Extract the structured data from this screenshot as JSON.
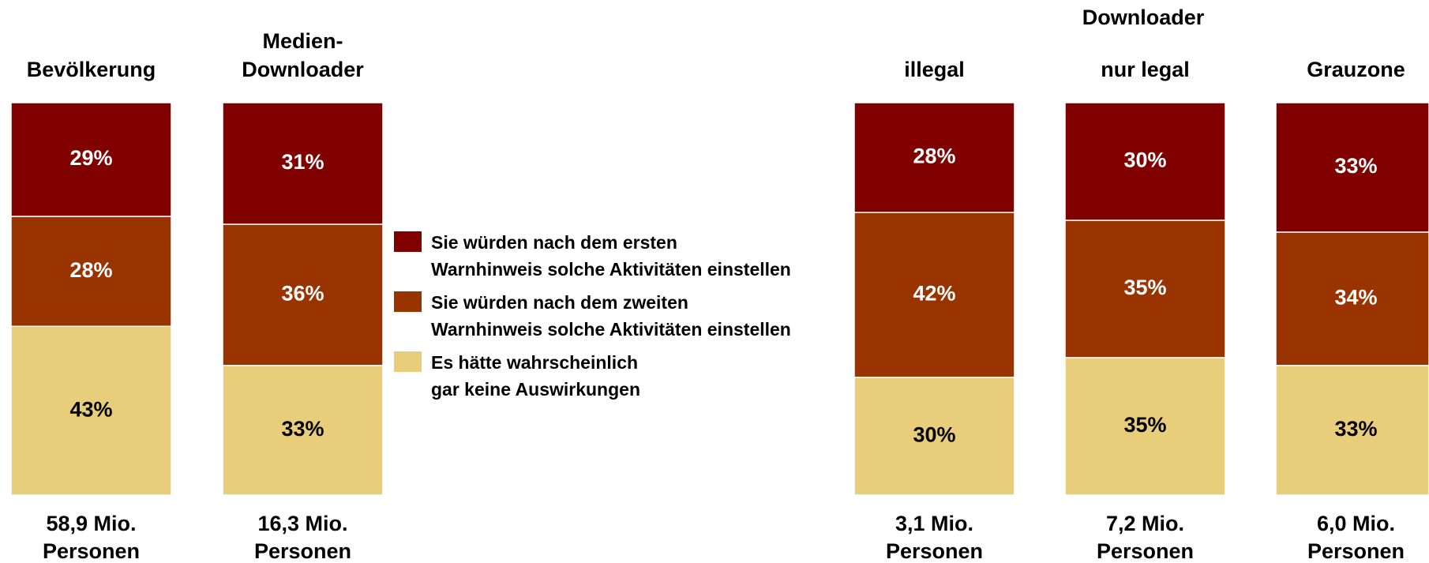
{
  "chart_data": {
    "type": "stacked_bar",
    "group_label": "Downloader",
    "categories": [
      [
        "Bevölkerung"
      ],
      [
        "Medien-",
        "Downloader"
      ],
      [
        "illegal"
      ],
      [
        "nur legal"
      ],
      [
        "Grauzone"
      ]
    ],
    "bar_footers": [
      [
        "58,9 Mio.",
        "Personen"
      ],
      [
        "16,3 Mio.",
        "Personen"
      ],
      [
        "3,1 Mio.",
        "Personen"
      ],
      [
        "7,2 Mio.",
        "Personen"
      ],
      [
        "6,0 Mio.",
        "Personen"
      ]
    ],
    "series": [
      {
        "name": [
          "Sie würden nach dem ersten",
          "Warnhinweis solche Aktivitäten einstellen"
        ],
        "color": "#800000",
        "label_color": "#ffffff",
        "values": [
          29,
          31,
          28,
          30,
          33
        ],
        "value_labels": [
          "29%",
          "31%",
          "28%",
          "30%",
          "33%"
        ]
      },
      {
        "name": [
          "Sie würden nach dem zweiten",
          "Warnhinweis solche Aktivitäten einstellen"
        ],
        "color": "#993300",
        "label_color": "#ffffff",
        "values": [
          28,
          36,
          42,
          35,
          34
        ],
        "value_labels": [
          "28%",
          "36%",
          "42%",
          "35%",
          "34%"
        ]
      },
      {
        "name": [
          "Es hätte wahrscheinlich",
          "gar keine Auswirkungen"
        ],
        "color": "#e8cd7a",
        "label_color": "#000000",
        "values": [
          43,
          33,
          30,
          35,
          33
        ],
        "value_labels": [
          "43%",
          "33%",
          "30%",
          "35%",
          "33%"
        ]
      }
    ]
  }
}
